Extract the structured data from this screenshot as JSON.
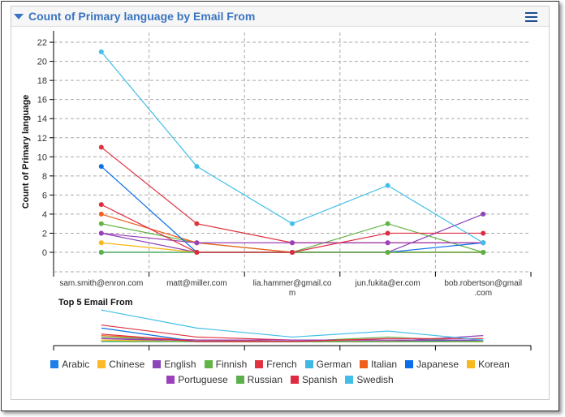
{
  "header": {
    "title": "Count of Primary language by Email From",
    "menu_icon": "hamburger-icon"
  },
  "chart_data": {
    "type": "line",
    "title": "Count of Primary language by Email From",
    "ylabel": "Count of Primary language",
    "xlabel": "",
    "ylim": [
      -2,
      23
    ],
    "yticks": [
      0,
      2,
      4,
      6,
      8,
      10,
      12,
      14,
      16,
      18,
      20,
      22
    ],
    "grid": true,
    "legend": "bottom",
    "categories": [
      "sam.smith@enron.com",
      "matt@miller.com",
      "lia.hammer@gmail.com",
      "jun.fukita@er.com",
      "bob.robertson@gmail.com"
    ],
    "category_labels": [
      [
        "sam.smith@enron.com"
      ],
      [
        "matt@miller.com"
      ],
      [
        "lia.hammer@gmail.co",
        "m"
      ],
      [
        "jun.fukita@er.com"
      ],
      [
        "bob.robertson@gmail",
        ".com"
      ]
    ],
    "navigator_title": "Top 5 Email From",
    "series": [
      {
        "name": "Arabic",
        "color": "#1f7fe8",
        "values": [
          0,
          0,
          0,
          0,
          0
        ]
      },
      {
        "name": "Chinese",
        "color": "#fbb829",
        "values": [
          1,
          0,
          0,
          0,
          0
        ]
      },
      {
        "name": "English",
        "color": "#8e44b8",
        "values": [
          2,
          0,
          0,
          0,
          4
        ]
      },
      {
        "name": "Finnish",
        "color": "#62b446",
        "values": [
          3,
          1,
          0,
          3,
          0
        ]
      },
      {
        "name": "French",
        "color": "#e0323f",
        "values": [
          11,
          3,
          1,
          1,
          1
        ]
      },
      {
        "name": "German",
        "color": "#3fb8e6",
        "values": [
          0,
          0,
          0,
          0,
          0
        ]
      },
      {
        "name": "Italian",
        "color": "#f0601a",
        "values": [
          4,
          1,
          0,
          0,
          0
        ]
      },
      {
        "name": "Japanese",
        "color": "#0a6ee8",
        "values": [
          9,
          0,
          0,
          0,
          1
        ]
      },
      {
        "name": "Korean",
        "color": "#f8b820",
        "values": [
          1,
          0,
          0,
          0,
          0
        ]
      },
      {
        "name": "Portuguese",
        "color": "#9b40b8",
        "values": [
          2,
          1,
          1,
          1,
          1
        ]
      },
      {
        "name": "Russian",
        "color": "#5cb04a",
        "values": [
          0,
          0,
          0,
          0,
          0
        ]
      },
      {
        "name": "Spanish",
        "color": "#e02a40",
        "values": [
          5,
          0,
          0,
          2,
          2
        ]
      },
      {
        "name": "Swedish",
        "color": "#40bfe8",
        "values": [
          21,
          9,
          3,
          7,
          1
        ]
      }
    ]
  }
}
